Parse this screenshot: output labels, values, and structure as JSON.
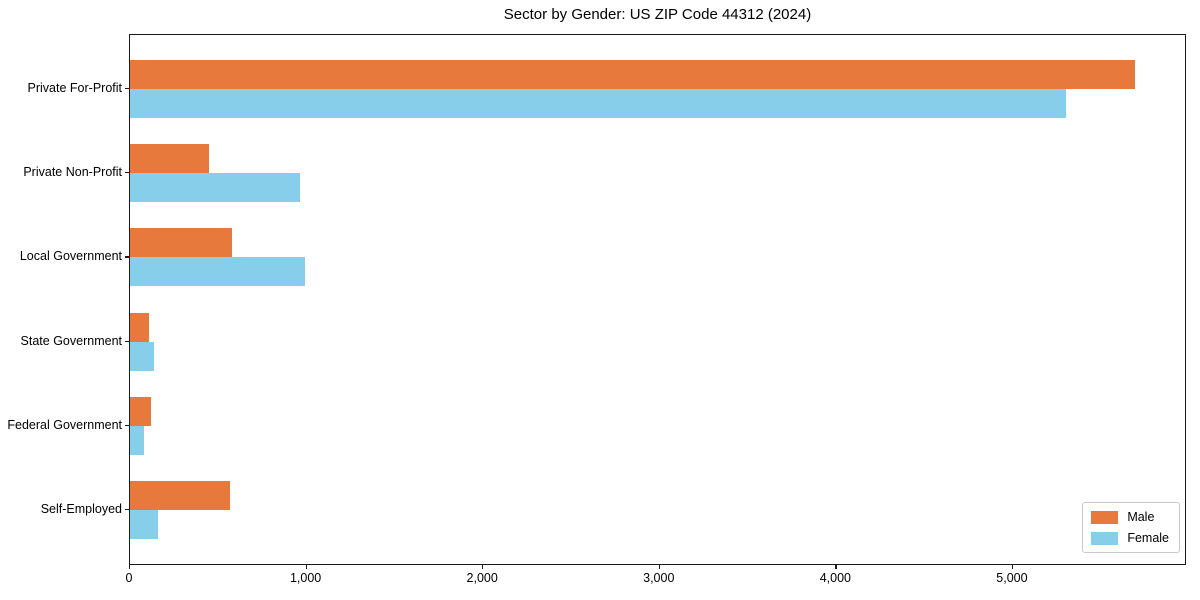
{
  "chart_data": {
    "type": "bar",
    "orientation": "horizontal",
    "title": "Sector by Gender: US ZIP Code 44312 (2024)",
    "xlabel": "",
    "ylabel": "",
    "categories": [
      "Private For-Profit",
      "Private Non-Profit",
      "Local Government",
      "State Government",
      "Federal Government",
      "Self-Employed"
    ],
    "series": [
      {
        "name": "Male",
        "color": "#e8793c",
        "values": [
          5690,
          445,
          575,
          108,
          120,
          565
        ]
      },
      {
        "name": "Female",
        "color": "#87ceeb",
        "values": [
          5300,
          960,
          990,
          138,
          80,
          160
        ]
      }
    ],
    "xlim": [
      0,
      5980
    ],
    "xticks": [
      0,
      1000,
      2000,
      3000,
      4000,
      5000
    ],
    "xtick_labels": [
      "0",
      "1,000",
      "2,000",
      "3,000",
      "4,000",
      "5,000"
    ],
    "grid": false,
    "legend_position": "lower right"
  }
}
